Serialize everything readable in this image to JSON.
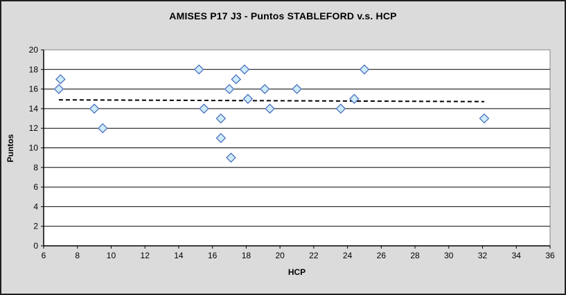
{
  "chart_data": {
    "type": "scatter",
    "title": "AMISES P17 J3 - Puntos STABLEFORD v.s. HCP",
    "xlabel": "HCP",
    "ylabel": "Puntos",
    "xlim": [
      6,
      36
    ],
    "ylim": [
      0,
      20
    ],
    "xticks": [
      6,
      8,
      10,
      12,
      14,
      16,
      18,
      20,
      22,
      24,
      26,
      28,
      30,
      32,
      34,
      36
    ],
    "yticks": [
      0,
      2,
      4,
      6,
      8,
      10,
      12,
      14,
      16,
      18,
      20
    ],
    "grid": "horizontal",
    "legend_position": "none",
    "series": [
      {
        "name": "Puntos STABLEFORD",
        "marker": "diamond",
        "points": [
          [
            6.9,
            16
          ],
          [
            7,
            17
          ],
          [
            9,
            14
          ],
          [
            9.5,
            12
          ],
          [
            15.2,
            18
          ],
          [
            15.5,
            14
          ],
          [
            16.5,
            13
          ],
          [
            16.5,
            11
          ],
          [
            17,
            16
          ],
          [
            17.1,
            9
          ],
          [
            17.4,
            17
          ],
          [
            17.9,
            18
          ],
          [
            18.1,
            15
          ],
          [
            19.1,
            16
          ],
          [
            19.4,
            14
          ],
          [
            21,
            16
          ],
          [
            23.6,
            14
          ],
          [
            24.4,
            15
          ],
          [
            25,
            18
          ],
          [
            32.1,
            13
          ]
        ]
      }
    ],
    "trendline": {
      "style": "dashed",
      "x1": 6.9,
      "y1": 14.9,
      "x2": 32.1,
      "y2": 14.72
    },
    "colors": {
      "background": "#dbdbdb",
      "plot_background": "#ffffff",
      "plot_border": "#848484",
      "gridline": "#000000",
      "axis": "#000000",
      "marker_fill": "#cdebf8",
      "marker_stroke": "#4c6fbb",
      "trendline": "#000000",
      "text": "#000000"
    }
  }
}
